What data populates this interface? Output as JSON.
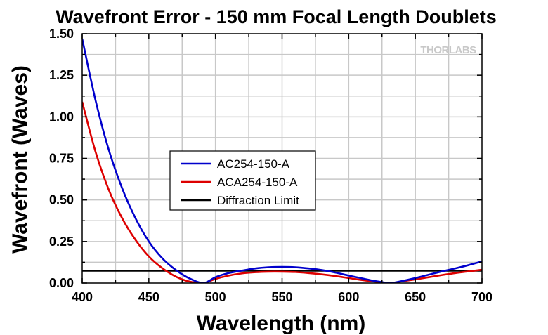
{
  "chart_data": {
    "type": "line",
    "title": "Wavefront Error - 150 mm Focal Length Doublets",
    "xlabel": "Wavelength (nm)",
    "ylabel": "Wavefront (Waves)",
    "xlim": [
      400,
      700
    ],
    "ylim": [
      0,
      1.5
    ],
    "xticks": [
      "400",
      "450",
      "500",
      "550",
      "600",
      "650",
      "700"
    ],
    "yticks": [
      "0.00",
      "0.25",
      "0.50",
      "0.75",
      "1.00",
      "1.25",
      "1.50"
    ],
    "grid": true,
    "legend_position": "center-left",
    "watermark": "THORLABS",
    "series": [
      {
        "name": "AC254-150-A",
        "color": "#0000cc",
        "x": [
          400,
          410,
          420,
          430,
          440,
          450,
          460,
          470,
          480,
          491,
          500,
          510,
          520,
          530,
          540,
          550,
          560,
          570,
          580,
          590,
          600,
          610,
          620,
          631,
          640,
          650,
          660,
          670,
          680,
          690,
          700
        ],
        "y": [
          1.47,
          1.1,
          0.8,
          0.57,
          0.39,
          0.25,
          0.15,
          0.08,
          0.03,
          0.0,
          0.035,
          0.06,
          0.075,
          0.088,
          0.095,
          0.097,
          0.095,
          0.088,
          0.078,
          0.063,
          0.045,
          0.028,
          0.012,
          0.0,
          0.012,
          0.03,
          0.05,
          0.07,
          0.088,
          0.108,
          0.13
        ]
      },
      {
        "name": "ACA254-150-A",
        "color": "#dd0000",
        "x": [
          400,
          410,
          420,
          430,
          440,
          450,
          460,
          470,
          480,
          491,
          500,
          510,
          520,
          530,
          540,
          550,
          560,
          570,
          580,
          590,
          600,
          610,
          620,
          631,
          640,
          650,
          660,
          670,
          680,
          690,
          700
        ],
        "y": [
          1.09,
          0.79,
          0.56,
          0.39,
          0.26,
          0.16,
          0.09,
          0.04,
          0.01,
          0.0,
          0.025,
          0.045,
          0.058,
          0.065,
          0.068,
          0.068,
          0.066,
          0.06,
          0.052,
          0.042,
          0.03,
          0.018,
          0.008,
          0.0,
          0.01,
          0.022,
          0.035,
          0.048,
          0.06,
          0.07,
          0.08
        ]
      },
      {
        "name": "Diffraction Limit",
        "color": "#000000",
        "x": [
          400,
          700
        ],
        "y": [
          0.074,
          0.074
        ]
      }
    ]
  }
}
